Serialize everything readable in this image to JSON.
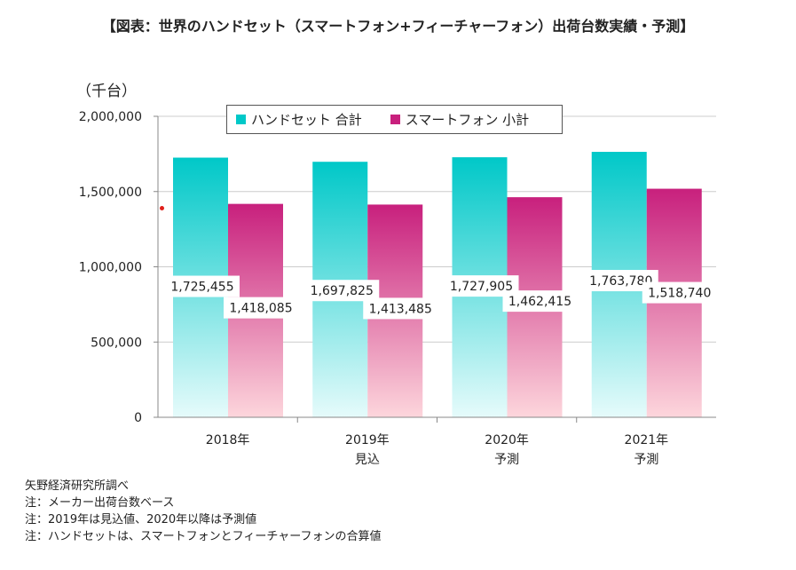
{
  "header": {
    "title": "【図表：世界のハンドセット（スマートフォン+フィーチャーフォン）出荷台数実績・予測】",
    "unit": "（千台）"
  },
  "notes": [
    "矢野経済研究所調べ",
    "注：メーカー出荷台数ベース",
    "注：2019年は見込値、2020年以降は予測値",
    "注：ハンドセットは、スマートフォンとフィーチャーフォンの合算値"
  ],
  "colors": {
    "handset_top": "#00c8c8",
    "handset_bottom": "#e6fbfb",
    "smartphone_top": "#c8207d",
    "smartphone_bottom": "#fdd6dc",
    "grid": "#cccccc",
    "axis": "#888888"
  },
  "chart_data": {
    "type": "bar",
    "categories": [
      [
        "2018年"
      ],
      [
        "2019年",
        "見込"
      ],
      [
        "2020年",
        "予測"
      ],
      [
        "2021年",
        "予測"
      ]
    ],
    "series": [
      {
        "name": "ハンドセット 合計",
        "values": [
          1725455,
          1697825,
          1727905,
          1763780
        ],
        "labels": [
          "1,725,455",
          "1,697,825",
          "1,727,905",
          "1,763,780"
        ]
      },
      {
        "name": "スマートフォン 小計",
        "values": [
          1418085,
          1413485,
          1462415,
          1518740
        ],
        "labels": [
          "1,418,085",
          "1,413,485",
          "1,462,415",
          "1,518,740"
        ]
      }
    ],
    "ylim": [
      0,
      2000000
    ],
    "yticks": [
      0,
      500000,
      1000000,
      1500000,
      2000000
    ],
    "ytick_labels": [
      "0",
      "500,000",
      "1,000,000",
      "1,500,000",
      "2,000,000"
    ],
    "ylabel": "（千台）",
    "legend_position": "top"
  }
}
